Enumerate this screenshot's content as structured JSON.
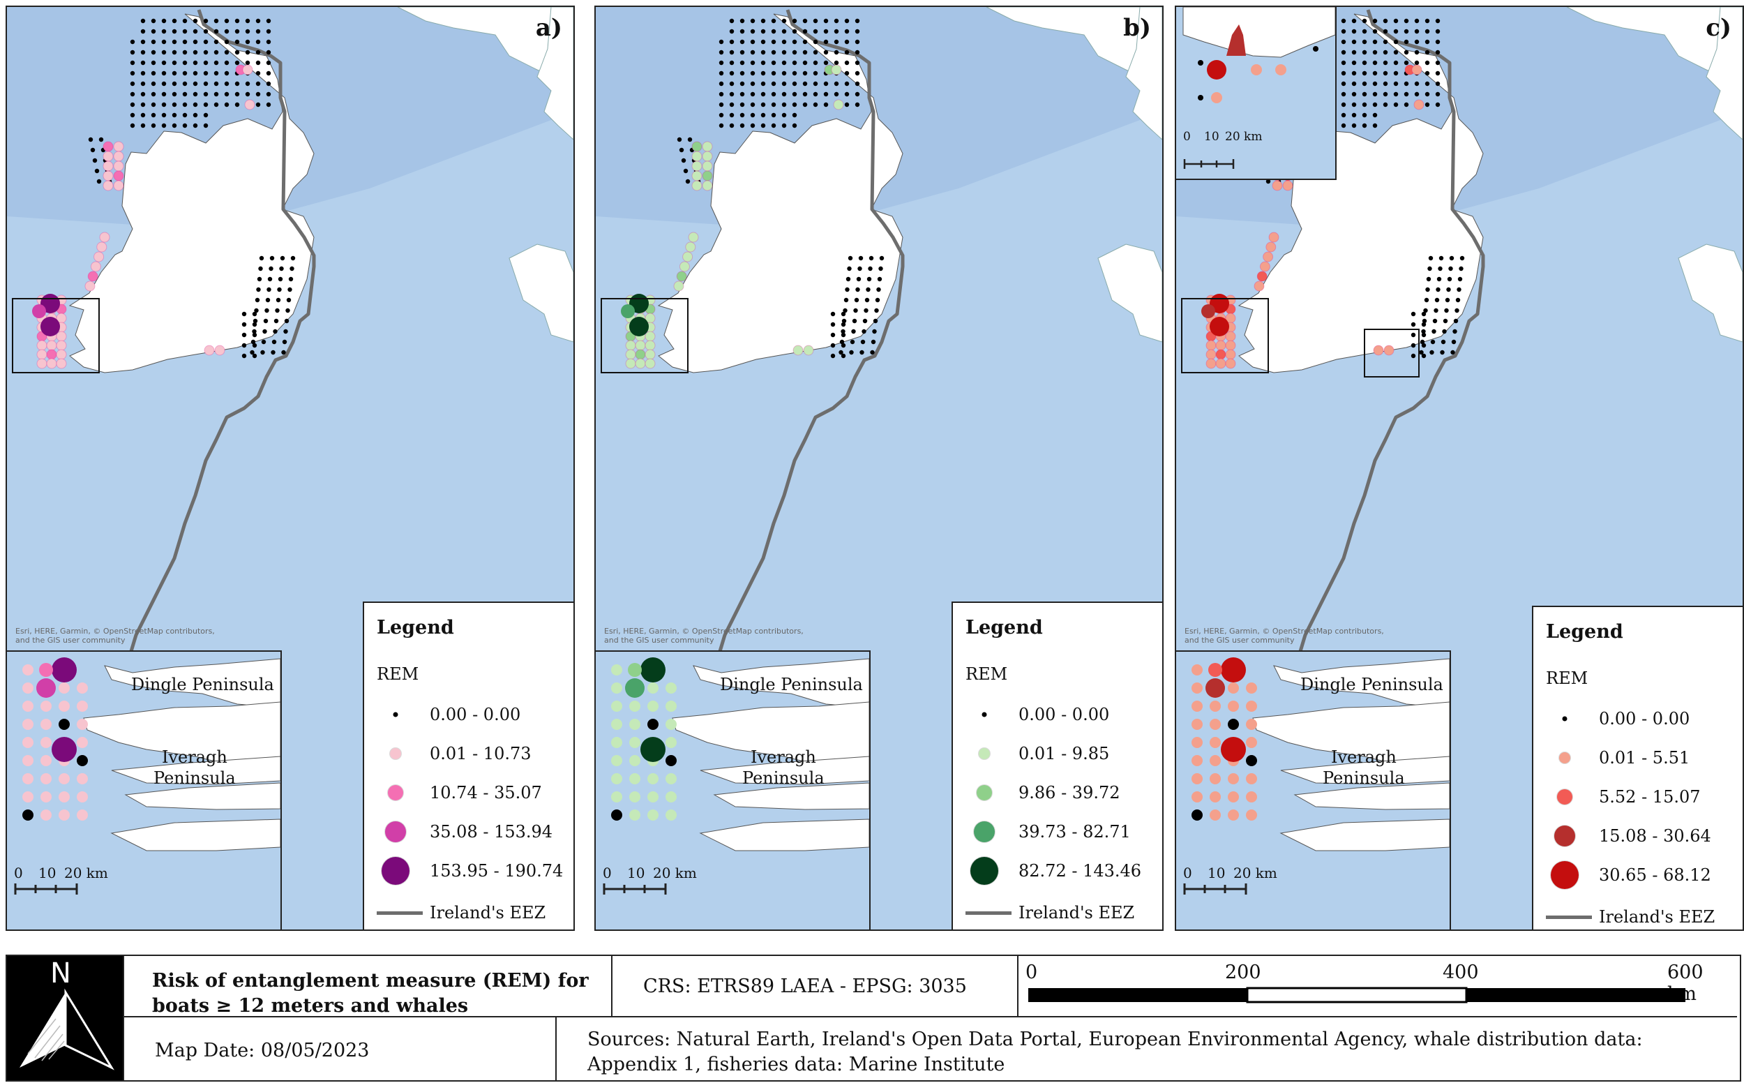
{
  "panels": [
    {
      "id": "a",
      "label": "a)",
      "attribution": [
        "Esri, HERE, Garmin, © OpenStreetMap contributors,",
        "and the GIS user community"
      ],
      "legend_title": "Legend",
      "legend_sub": "REM",
      "classes": [
        "0.00 - 0.00",
        "0.01 - 10.73",
        "10.74 - 35.07",
        "35.08 - 153.94",
        "153.95 - 190.74"
      ],
      "colors": [
        "#000000",
        "#f7c4cf",
        "#f46fb3",
        "#d13fa8",
        "#7b0a7a"
      ],
      "eez_label": "Ireland's EEZ",
      "inset_labels": [
        "Dingle Peninsula",
        "Iveragh",
        "Peninsula"
      ],
      "scale_labels": [
        "0",
        "10",
        "20 km"
      ]
    },
    {
      "id": "b",
      "label": "b)",
      "attribution": [
        "Esri, HERE, Garmin, © OpenStreetMap contributors,",
        "and the GIS user community"
      ],
      "legend_title": "Legend",
      "legend_sub": "REM",
      "classes": [
        "0.00 - 0.00",
        "0.01 - 9.85",
        "9.86 - 39.72",
        "39.73 - 82.71",
        "82.72 - 143.46"
      ],
      "colors": [
        "#000000",
        "#c5e9b8",
        "#8fd08a",
        "#4aa369",
        "#043d1b"
      ],
      "eez_label": "Ireland's EEZ",
      "inset_labels": [
        "Dingle Peninsula",
        "Iveragh",
        "Peninsula"
      ],
      "scale_labels": [
        "0",
        "10",
        "20 km"
      ]
    },
    {
      "id": "c",
      "label": "c)",
      "attribution": [
        "Esri, HERE, Garmin, © OpenStreetMap contributors,",
        "and the GIS user community"
      ],
      "legend_title": "Legend",
      "legend_sub": "REM",
      "classes": [
        "0.00 - 0.00",
        "0.01 - 5.51",
        "5.52 - 15.07",
        "15.08 - 30.64",
        "30.65 - 68.12"
      ],
      "colors": [
        "#000000",
        "#f4a08c",
        "#f25b55",
        "#b52f2d",
        "#c40e0e"
      ],
      "eez_label": "Ireland's EEZ",
      "inset_labels": [
        "Dingle Peninsula",
        "Iveragh",
        "Peninsula"
      ],
      "scale_labels": [
        "0",
        "10",
        "20 km"
      ],
      "top_inset_scale": [
        "0",
        "10",
        "20 km"
      ]
    }
  ],
  "info": {
    "north": "N",
    "title": [
      "Risk of entanglement measure (REM) for",
      "boats ≥ 12 meters and whales"
    ],
    "crs": "CRS: ETRS89 LAEA - EPSG: 3035",
    "scalebar": [
      "0",
      "200",
      "400",
      "600 km"
    ],
    "date": "Map Date: 08/05/2023",
    "sources": "Sources:  Natural Earth, Ireland's Open Data Portal, European Environmental Agency, whale distribution data: Appendix 1, fisheries data: Marine Institute"
  }
}
